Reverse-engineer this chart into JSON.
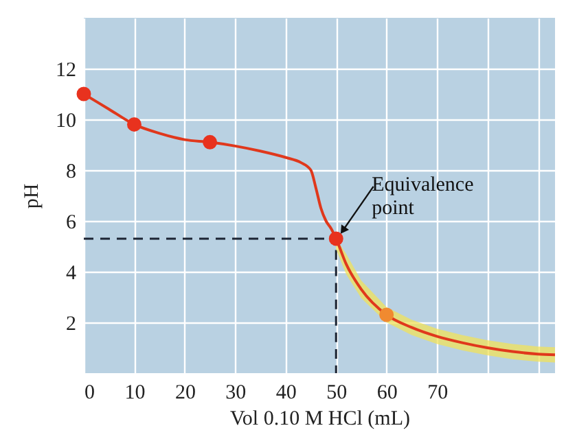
{
  "chart_data": {
    "type": "line",
    "xlabel": "Vol 0.10 M HCl (mL)",
    "ylabel": "pH",
    "xlim": [
      0,
      93.4
    ],
    "ylim": [
      0,
      14
    ],
    "xticks": [
      0,
      10,
      20,
      30,
      40,
      50,
      60,
      70,
      {
        "value": 80,
        "label": null
      },
      {
        "value": 90,
        "label": null
      }
    ],
    "yticks": [
      2,
      4,
      6,
      8,
      10,
      12
    ],
    "grid": true,
    "series": [
      {
        "line_style": "dashed",
        "color": "#1c2433",
        "x": [
          0,
          50,
          50
        ],
        "values": [
          5.3,
          5.3,
          0
        ]
      },
      {
        "color": "#e0381c",
        "x": [
          0,
          5,
          10,
          15,
          20,
          25,
          30,
          35,
          40,
          43,
          45,
          46,
          47,
          48,
          49,
          50,
          52,
          55,
          60,
          65,
          70,
          75,
          80,
          85,
          90,
          93.4
        ],
        "values": [
          11,
          10.4,
          9.8,
          9.45,
          9.2,
          9.1,
          8.95,
          8.75,
          8.5,
          8.3,
          8.0,
          7.3,
          6.5,
          6.0,
          5.7,
          5.3,
          4.3,
          3.3,
          2.3,
          1.8,
          1.45,
          1.2,
          1.0,
          0.85,
          0.75,
          0.72
        ],
        "lower": [
          null,
          null,
          null,
          null,
          null,
          null,
          null,
          null,
          null,
          null,
          null,
          null,
          null,
          null,
          null,
          4.9,
          3.9,
          2.95,
          2.0,
          1.5,
          1.15,
          0.9,
          0.7,
          0.55,
          0.45,
          0.42
        ],
        "upper": [
          null,
          null,
          null,
          null,
          null,
          null,
          null,
          null,
          null,
          null,
          null,
          null,
          null,
          null,
          null,
          5.3,
          4.7,
          3.65,
          2.6,
          2.1,
          1.75,
          1.5,
          1.3,
          1.15,
          1.05,
          1.02
        ]
      },
      {
        "type": "scatter",
        "marker": "circle",
        "color": "#e8321e",
        "colors": [
          "#e8321e",
          "#e8321e",
          "#e8321e",
          "#e8321e",
          "#f08a30"
        ],
        "x": [
          0,
          10,
          25,
          50,
          60
        ],
        "values": [
          11,
          9.8,
          9.1,
          5.3,
          2.3
        ]
      }
    ],
    "annotations": [
      {
        "text": "Equivalence point",
        "x": 50,
        "y": 5.3
      }
    ]
  }
}
